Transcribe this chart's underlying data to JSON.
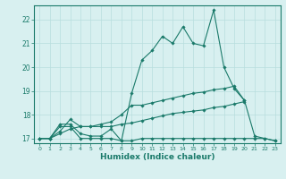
{
  "xlabel": "Humidex (Indice chaleur)",
  "x_values": [
    0,
    1,
    2,
    3,
    4,
    5,
    6,
    7,
    8,
    9,
    10,
    11,
    12,
    13,
    14,
    15,
    16,
    17,
    18,
    19,
    20,
    21,
    22,
    23
  ],
  "line1_y": [
    17.0,
    17.0,
    17.5,
    17.5,
    17.0,
    17.0,
    17.0,
    17.0,
    16.9,
    18.9,
    20.3,
    20.7,
    21.3,
    21.0,
    21.7,
    21.0,
    20.9,
    22.4,
    20.0,
    19.1,
    18.6,
    17.1,
    17.0,
    16.9
  ],
  "line2_y": [
    17.0,
    17.0,
    17.6,
    17.6,
    17.2,
    17.1,
    17.1,
    17.4,
    16.9,
    16.9,
    17.0,
    17.0,
    17.0,
    17.0,
    17.0,
    17.0,
    17.0,
    17.0,
    17.0,
    17.0,
    17.0,
    17.0,
    17.0,
    16.9
  ],
  "line3_y": [
    17.0,
    17.0,
    17.3,
    17.8,
    17.5,
    17.5,
    17.6,
    17.7,
    18.0,
    18.4,
    18.4,
    18.5,
    18.6,
    18.7,
    18.8,
    18.9,
    18.95,
    19.05,
    19.1,
    19.2,
    18.6,
    null,
    null,
    null
  ],
  "line4_y": [
    17.0,
    17.0,
    17.2,
    17.4,
    17.5,
    17.5,
    17.5,
    17.5,
    17.6,
    17.65,
    17.75,
    17.85,
    17.95,
    18.05,
    18.1,
    18.15,
    18.2,
    18.3,
    18.35,
    18.45,
    18.55,
    null,
    null,
    null
  ],
  "line_color": "#1a7a6a",
  "bg_color": "#d8f0f0",
  "grid_color": "#b8dede",
  "ylim": [
    16.8,
    22.6
  ],
  "yticks": [
    17,
    18,
    19,
    20,
    21,
    22
  ],
  "xlim": [
    -0.5,
    23.5
  ]
}
